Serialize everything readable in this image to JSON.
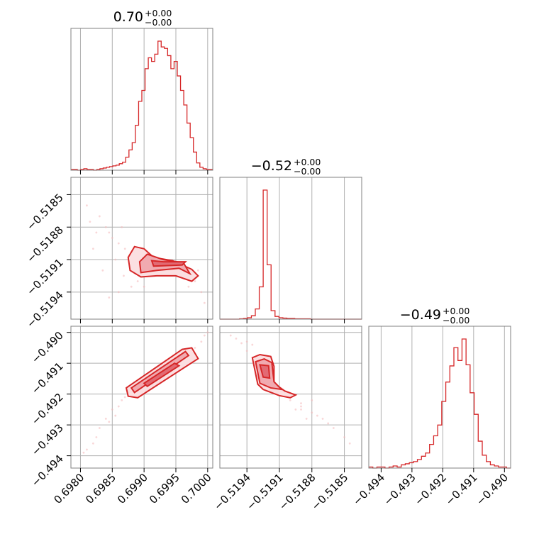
{
  "chart_data": {
    "type": "corner",
    "color": "#d62728",
    "parameters": [
      {
        "title_value": "0.70",
        "title_plus": "+0.00",
        "title_minus": "−0.00",
        "range": [
          0.69785,
          0.70008
        ],
        "ticks": [
          0.698,
          0.6985,
          0.699,
          0.6995,
          0.7
        ],
        "tick_labels": [
          "0.6980",
          "0.6985",
          "0.6990",
          "0.6995",
          "0.7000"
        ],
        "histogram": {
          "edges_start": 0.69785,
          "edges_end": 0.70008,
          "counts": [
            1,
            1,
            0,
            1,
            2,
            1,
            1,
            0,
            1,
            2,
            3,
            4,
            5,
            6,
            7,
            9,
            11,
            18,
            28,
            38,
            62,
            95,
            110,
            140,
            155,
            150,
            160,
            178,
            170,
            168,
            158,
            140,
            150,
            130,
            110,
            90,
            65,
            45,
            25,
            10,
            4,
            2,
            1,
            1
          ]
        }
      },
      {
        "title_value": "−0.52",
        "title_plus": "+0.00",
        "title_minus": "−0.00",
        "range": [
          -0.51965,
          -0.51834
        ],
        "ticks": [
          -0.5194,
          -0.5191,
          -0.5188,
          -0.5185
        ],
        "tick_labels": [
          "−0.5194",
          "−0.5191",
          "−0.5188",
          "−0.5185"
        ],
        "histogram": {
          "edges_start": -0.51965,
          "edges_end": -0.51834,
          "counts": [
            0,
            0,
            0,
            0,
            0,
            1,
            2,
            4,
            10,
            30,
            95,
            380,
            160,
            25,
            8,
            4,
            3,
            2,
            2,
            1,
            1,
            1,
            1,
            0,
            0,
            0,
            0,
            0,
            0,
            0,
            0,
            0,
            0,
            0,
            0,
            0
          ]
        }
      },
      {
        "title_value": "−0.49",
        "title_plus": "+0.00",
        "title_minus": "−0.00",
        "range": [
          -0.4944,
          -0.4898
        ],
        "ticks": [
          -0.494,
          -0.493,
          -0.492,
          -0.491,
          -0.49
        ],
        "tick_labels": [
          "−0.494",
          "−0.493",
          "−0.492",
          "−0.491",
          "−0.490"
        ],
        "histogram": {
          "edges_start": -0.4944,
          "edges_end": -0.4898,
          "counts": [
            1,
            0,
            1,
            1,
            0,
            1,
            2,
            1,
            3,
            4,
            5,
            6,
            8,
            11,
            14,
            22,
            30,
            40,
            62,
            80,
            95,
            112,
            100,
            120,
            96,
            70,
            50,
            25,
            12,
            6,
            3,
            2,
            1,
            1,
            0
          ]
        }
      }
    ],
    "pairs": [
      {
        "x_param": 0,
        "y_param": 1,
        "contours": [
          [
            [
              0.69878,
              -0.5192
            ],
            [
              0.69895,
              -0.51926
            ],
            [
              0.6992,
              -0.51925
            ],
            [
              0.6995,
              -0.51925
            ],
            [
              0.69975,
              -0.5193
            ],
            [
              0.69985,
              -0.51925
            ],
            [
              0.69975,
              -0.51919
            ],
            [
              0.69945,
              -0.51911
            ],
            [
              0.69915,
              -0.51908
            ],
            [
              0.699,
              -0.519
            ],
            [
              0.69885,
              -0.51898
            ],
            [
              0.69875,
              -0.51908
            ]
          ],
          [
            [
              0.69895,
              -0.51922
            ],
            [
              0.6992,
              -0.5192
            ],
            [
              0.69955,
              -0.51918
            ],
            [
              0.69972,
              -0.51923
            ],
            [
              0.69962,
              -0.51913
            ],
            [
              0.6993,
              -0.5191
            ],
            [
              0.69905,
              -0.51905
            ],
            [
              0.69893,
              -0.51912
            ]
          ],
          [
            [
              0.69915,
              -0.51916
            ],
            [
              0.6996,
              -0.51915
            ],
            [
              0.69965,
              -0.51912
            ],
            [
              0.6993,
              -0.51912
            ],
            [
              0.69912,
              -0.51911
            ]
          ]
        ],
        "points": [
          [
            0.6981,
            -0.5186
          ],
          [
            0.69815,
            -0.51875
          ],
          [
            0.6983,
            -0.5187
          ],
          [
            0.6984,
            -0.5188
          ],
          [
            0.69845,
            -0.51885
          ],
          [
            0.6985,
            -0.5189
          ],
          [
            0.6986,
            -0.51895
          ],
          [
            0.69855,
            -0.5191
          ],
          [
            0.6987,
            -0.519
          ],
          [
            0.6988,
            -0.51935
          ],
          [
            0.6989,
            -0.5193
          ],
          [
            0.699,
            -0.51935
          ],
          [
            0.6998,
            -0.5193
          ],
          [
            0.6999,
            -0.5194
          ],
          [
            0.69995,
            -0.5195
          ],
          [
            0.6982,
            -0.519
          ],
          [
            0.69835,
            -0.5192
          ],
          [
            0.69845,
            -0.51945
          ],
          [
            0.6986,
            -0.5194
          ],
          [
            0.69865,
            -0.5188
          ],
          [
            0.69825,
            -0.51885
          ],
          [
            0.6997,
            -0.51935
          ],
          [
            0.69985,
            -0.5192
          ],
          [
            0.69868,
            -0.51925
          ]
        ]
      },
      {
        "x_param": 0,
        "y_param": 2,
        "contours": [
          [
            [
              0.69875,
              -0.49207
            ],
            [
              0.6989,
              -0.49212
            ],
            [
              0.69985,
              -0.49085
            ],
            [
              0.69975,
              -0.4905
            ],
            [
              0.6996,
              -0.49055
            ],
            [
              0.69872,
              -0.4918
            ]
          ],
          [
            [
              0.69885,
              -0.49195
            ],
            [
              0.6997,
              -0.49075
            ],
            [
              0.69965,
              -0.49062
            ],
            [
              0.6988,
              -0.4918
            ]
          ],
          [
            [
              0.69905,
              -0.49175
            ],
            [
              0.69955,
              -0.49108
            ],
            [
              0.69948,
              -0.491
            ],
            [
              0.699,
              -0.49165
            ]
          ]
        ],
        "points": [
          [
            0.6981,
            -0.4938
          ],
          [
            0.69825,
            -0.4934
          ],
          [
            0.6984,
            -0.4928
          ],
          [
            0.6985,
            -0.4925
          ],
          [
            0.6986,
            -0.4924
          ],
          [
            0.69845,
            -0.4929
          ],
          [
            0.6983,
            -0.4931
          ],
          [
            0.6982,
            -0.4936
          ],
          [
            0.69805,
            -0.4939
          ],
          [
            0.69865,
            -0.4922
          ],
          [
            0.6999,
            -0.4903
          ],
          [
            0.69995,
            -0.4901
          ],
          [
            0.7,
            -0.49
          ],
          [
            0.6998,
            -0.4905
          ],
          [
            0.69855,
            -0.4927
          ],
          [
            0.6987,
            -0.4921
          ]
        ]
      },
      {
        "x_param": 1,
        "y_param": 2,
        "contours": [
          [
            [
              -0.51935,
              -0.49082
            ],
            [
              -0.5193,
              -0.49168
            ],
            [
              -0.51925,
              -0.49185
            ],
            [
              -0.5191,
              -0.49205
            ],
            [
              -0.519,
              -0.49212
            ],
            [
              -0.51895,
              -0.49203
            ],
            [
              -0.51905,
              -0.4919
            ],
            [
              -0.51915,
              -0.49165
            ],
            [
              -0.51915,
              -0.4911
            ],
            [
              -0.51918,
              -0.49078
            ],
            [
              -0.51928,
              -0.49072
            ]
          ],
          [
            [
              -0.51932,
              -0.49095
            ],
            [
              -0.51928,
              -0.49165
            ],
            [
              -0.51918,
              -0.4918
            ],
            [
              -0.51908,
              -0.49185
            ],
            [
              -0.51915,
              -0.4916
            ],
            [
              -0.51917,
              -0.49098
            ],
            [
              -0.51924,
              -0.49086
            ]
          ],
          [
            [
              -0.51928,
              -0.49105
            ],
            [
              -0.51925,
              -0.49145
            ],
            [
              -0.51919,
              -0.49148
            ],
            [
              -0.5192,
              -0.49108
            ]
          ]
        ],
        "points": [
          [
            -0.5195,
            -0.4902
          ],
          [
            -0.51945,
            -0.49035
          ],
          [
            -0.5194,
            -0.4906
          ],
          [
            -0.51935,
            -0.4904
          ],
          [
            -0.519,
            -0.4922
          ],
          [
            -0.5189,
            -0.4924
          ],
          [
            -0.5188,
            -0.4926
          ],
          [
            -0.5187,
            -0.4928
          ],
          [
            -0.5186,
            -0.4931
          ],
          [
            -0.51865,
            -0.49295
          ],
          [
            -0.5189,
            -0.4923
          ],
          [
            -0.51875,
            -0.4927
          ],
          [
            -0.51895,
            -0.4925
          ],
          [
            -0.5188,
            -0.4922
          ],
          [
            -0.5194,
            -0.4903
          ],
          [
            -0.51955,
            -0.4901
          ],
          [
            -0.5185,
            -0.4934
          ],
          [
            -0.51845,
            -0.4936
          ],
          [
            -0.5189,
            -0.4925
          ],
          [
            -0.51885,
            -0.4928
          ]
        ]
      }
    ]
  }
}
